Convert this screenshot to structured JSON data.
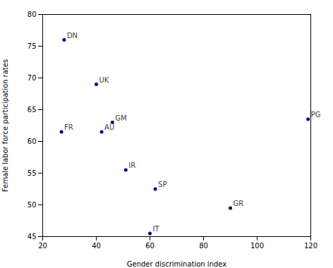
{
  "chart_data": {
    "type": "scatter",
    "xlabel": "Gender discrimination index",
    "ylabel": "Female labor force participation rates",
    "labels": [
      "DN",
      "UK",
      "FR",
      "GM",
      "AU",
      "IR",
      "SP",
      "IT",
      "GR",
      "PG"
    ],
    "x": [
      28,
      40,
      27,
      46,
      42,
      51,
      62,
      60,
      90,
      119
    ],
    "values": [
      76,
      69,
      61.5,
      63,
      61.5,
      55.5,
      52.5,
      45.5,
      49.5,
      63.5
    ],
    "color": "#00008B",
    "xlim": [
      20,
      120
    ],
    "ylim": [
      45,
      80
    ],
    "xticks": [
      20,
      40,
      60,
      80,
      100,
      120
    ],
    "yticks": [
      45,
      50,
      55,
      60,
      65,
      70,
      75,
      80
    ],
    "grid": false
  }
}
